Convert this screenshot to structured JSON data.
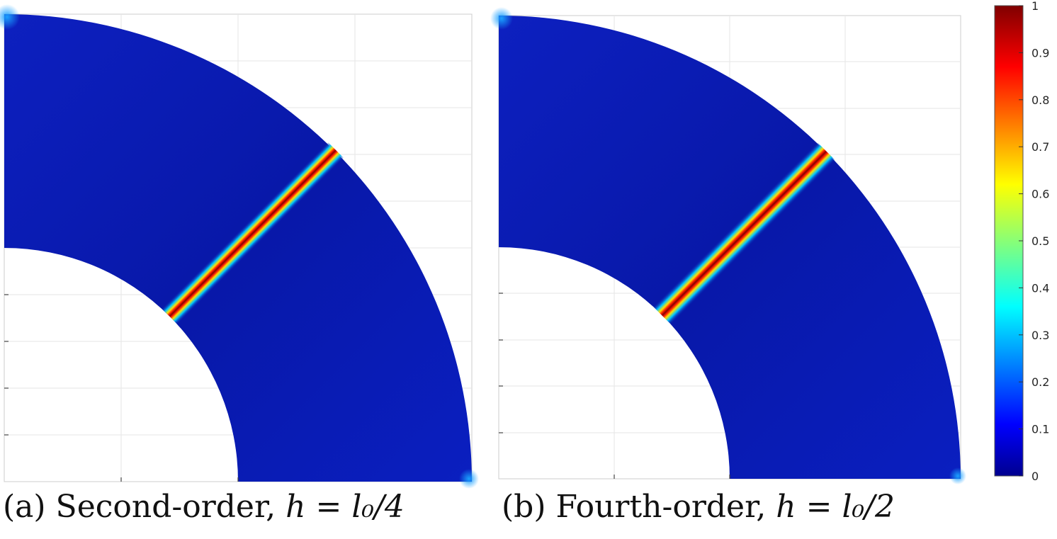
{
  "chart_data": [
    {
      "type": "heatmap",
      "panel": "a",
      "caption_label": "(a) Second-order,",
      "caption_math": "h = l₀/4",
      "geometry": "quarter annulus",
      "field_range": [
        0,
        1
      ],
      "crack_band": {
        "peak_value": 1,
        "background_value": 0.05,
        "orientation_deg": 45
      },
      "grid": true
    },
    {
      "type": "heatmap",
      "panel": "b",
      "caption_label": "(b) Fourth-order,",
      "caption_math": "h = l₀/2",
      "geometry": "quarter annulus",
      "field_range": [
        0,
        1
      ],
      "crack_band": {
        "peak_value": 1,
        "background_value": 0.05,
        "orientation_deg": 45
      },
      "grid": true
    }
  ],
  "colorbar": {
    "colormap": "jet",
    "ticks": [
      "0",
      "0.1",
      "0.2",
      "0.3",
      "0.4",
      "0.5",
      "0.6",
      "0.7",
      "0.8",
      "0.9",
      "1"
    ],
    "range": [
      0,
      1
    ]
  },
  "colors": {
    "jet_stops": [
      "#00008f",
      "#0000ff",
      "#00ffff",
      "#ffff00",
      "#ff0000",
      "#800000"
    ],
    "background_blue": "#0a1ab0"
  }
}
